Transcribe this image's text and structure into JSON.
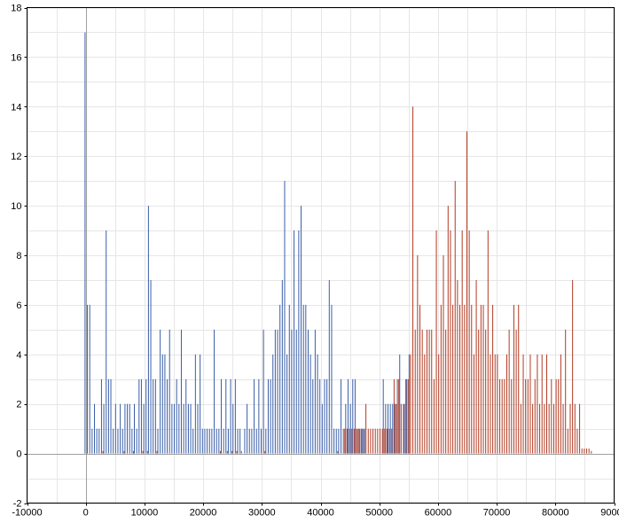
{
  "chart_data": {
    "type": "bar",
    "title": "",
    "xlabel": "",
    "ylabel": "",
    "xlim": [
      -10000,
      90000
    ],
    "ylim": [
      -2,
      18
    ],
    "grid": true,
    "x_ticks": [
      -10000,
      0,
      10000,
      20000,
      30000,
      40000,
      50000,
      60000,
      70000,
      80000,
      90000
    ],
    "y_ticks": [
      -2,
      0,
      2,
      4,
      6,
      8,
      10,
      12,
      14,
      16,
      18
    ],
    "bin_width": 400,
    "colors": {
      "blue": "#3a5ea8",
      "red": "#b23a22",
      "grid": "#e6e6e6",
      "axis": "#a0a0a0",
      "frame": "#000000"
    },
    "series": [
      {
        "color": "#3a5ea8",
        "points": [
          [
            0,
            17
          ],
          [
            400,
            6
          ],
          [
            800,
            6
          ],
          [
            1200,
            1
          ],
          [
            1600,
            2
          ],
          [
            2000,
            1
          ],
          [
            2400,
            1
          ],
          [
            2800,
            3
          ],
          [
            3200,
            2
          ],
          [
            3600,
            9
          ],
          [
            4000,
            3
          ],
          [
            4400,
            3
          ],
          [
            4800,
            1
          ],
          [
            5200,
            2
          ],
          [
            5600,
            1
          ],
          [
            6000,
            2
          ],
          [
            6400,
            1
          ],
          [
            6800,
            2
          ],
          [
            7200,
            2
          ],
          [
            7600,
            2
          ],
          [
            8000,
            1
          ],
          [
            8400,
            2
          ],
          [
            8800,
            1
          ],
          [
            9200,
            3
          ],
          [
            9600,
            3
          ],
          [
            10000,
            2
          ],
          [
            10400,
            3
          ],
          [
            10800,
            10
          ],
          [
            11200,
            7
          ],
          [
            11600,
            3
          ],
          [
            12000,
            3
          ],
          [
            12400,
            1
          ],
          [
            12800,
            5
          ],
          [
            13200,
            4
          ],
          [
            13600,
            4
          ],
          [
            14000,
            3
          ],
          [
            14400,
            5
          ],
          [
            14800,
            2
          ],
          [
            15200,
            2
          ],
          [
            15600,
            3
          ],
          [
            16000,
            2
          ],
          [
            16400,
            5
          ],
          [
            16800,
            2
          ],
          [
            17200,
            3
          ],
          [
            17600,
            2
          ],
          [
            18000,
            2
          ],
          [
            18400,
            1
          ],
          [
            18800,
            4
          ],
          [
            19200,
            2
          ],
          [
            19600,
            4
          ],
          [
            20000,
            1
          ],
          [
            20400,
            1
          ],
          [
            20800,
            1
          ],
          [
            21200,
            1
          ],
          [
            21600,
            1
          ],
          [
            22000,
            5
          ],
          [
            22400,
            1
          ],
          [
            22800,
            1
          ],
          [
            23200,
            3
          ],
          [
            23600,
            1
          ],
          [
            24000,
            3
          ],
          [
            24400,
            1
          ],
          [
            24800,
            3
          ],
          [
            25200,
            2
          ],
          [
            25600,
            3
          ],
          [
            26000,
            1
          ],
          [
            26400,
            1
          ],
          [
            27200,
            1
          ],
          [
            27600,
            2
          ],
          [
            28000,
            1
          ],
          [
            28400,
            1
          ],
          [
            28800,
            3
          ],
          [
            29200,
            1
          ],
          [
            29600,
            3
          ],
          [
            30000,
            1
          ],
          [
            30400,
            5
          ],
          [
            30800,
            1
          ],
          [
            31200,
            3
          ],
          [
            31600,
            3
          ],
          [
            32000,
            4
          ],
          [
            32400,
            5
          ],
          [
            32800,
            5
          ],
          [
            33200,
            6
          ],
          [
            33600,
            7
          ],
          [
            34000,
            11
          ],
          [
            34400,
            4
          ],
          [
            34800,
            6
          ],
          [
            35200,
            5
          ],
          [
            35600,
            9
          ],
          [
            36000,
            5
          ],
          [
            36400,
            9
          ],
          [
            36800,
            10
          ],
          [
            37200,
            6
          ],
          [
            37600,
            6
          ],
          [
            38000,
            5
          ],
          [
            38400,
            4
          ],
          [
            38800,
            3
          ],
          [
            39200,
            5
          ],
          [
            39600,
            4
          ],
          [
            40000,
            3
          ],
          [
            40400,
            2
          ],
          [
            40800,
            3
          ],
          [
            41200,
            3
          ],
          [
            41600,
            7
          ],
          [
            42000,
            6
          ],
          [
            42400,
            1
          ],
          [
            42800,
            1
          ],
          [
            43200,
            1
          ],
          [
            43600,
            3
          ],
          [
            44000,
            1
          ],
          [
            44400,
            2
          ],
          [
            44800,
            3
          ],
          [
            45200,
            2
          ],
          [
            45600,
            3
          ],
          [
            46000,
            3
          ],
          [
            46400,
            1
          ],
          [
            46800,
            1
          ],
          [
            47200,
            1
          ],
          [
            47600,
            1
          ],
          [
            50800,
            3
          ],
          [
            51200,
            2
          ],
          [
            51600,
            2
          ],
          [
            52000,
            2
          ],
          [
            52400,
            2
          ],
          [
            52800,
            2
          ],
          [
            53200,
            3
          ],
          [
            53600,
            4
          ],
          [
            54400,
            2
          ],
          [
            54800,
            3
          ],
          [
            55200,
            4
          ]
        ]
      },
      {
        "color": "#b23a22",
        "points": [
          [
            2800,
            0.1
          ],
          [
            6400,
            0.1
          ],
          [
            8000,
            0.1
          ],
          [
            9600,
            0.1
          ],
          [
            10400,
            0.1
          ],
          [
            12000,
            0.1
          ],
          [
            22800,
            0.1
          ],
          [
            24000,
            0.1
          ],
          [
            24800,
            0.1
          ],
          [
            25600,
            0.1
          ],
          [
            26400,
            0.1
          ],
          [
            30400,
            0.1
          ],
          [
            42800,
            0.1
          ],
          [
            44000,
            1
          ],
          [
            44400,
            1
          ],
          [
            44800,
            1
          ],
          [
            45200,
            1
          ],
          [
            45600,
            1
          ],
          [
            46000,
            1
          ],
          [
            46400,
            1
          ],
          [
            46800,
            1
          ],
          [
            47200,
            1
          ],
          [
            47600,
            2
          ],
          [
            48000,
            1
          ],
          [
            48400,
            1
          ],
          [
            48800,
            1
          ],
          [
            49200,
            1
          ],
          [
            49600,
            1
          ],
          [
            50000,
            1
          ],
          [
            50400,
            1
          ],
          [
            50800,
            1
          ],
          [
            51200,
            1
          ],
          [
            51600,
            1
          ],
          [
            52000,
            1
          ],
          [
            52400,
            3
          ],
          [
            52800,
            2
          ],
          [
            53200,
            3
          ],
          [
            53600,
            2
          ],
          [
            54000,
            2
          ],
          [
            54400,
            3
          ],
          [
            54800,
            3
          ],
          [
            55200,
            4
          ],
          [
            55600,
            14
          ],
          [
            56000,
            5
          ],
          [
            56400,
            8
          ],
          [
            56800,
            6
          ],
          [
            57200,
            5
          ],
          [
            57600,
            4
          ],
          [
            58000,
            5
          ],
          [
            58400,
            5
          ],
          [
            58800,
            5
          ],
          [
            59200,
            3
          ],
          [
            59600,
            9
          ],
          [
            60000,
            4
          ],
          [
            60400,
            6
          ],
          [
            60800,
            8
          ],
          [
            61200,
            5
          ],
          [
            61600,
            10
          ],
          [
            62000,
            9
          ],
          [
            62400,
            6
          ],
          [
            62800,
            11
          ],
          [
            63200,
            7
          ],
          [
            63600,
            6
          ],
          [
            64000,
            9
          ],
          [
            64400,
            6
          ],
          [
            64800,
            13
          ],
          [
            65200,
            9
          ],
          [
            65600,
            6
          ],
          [
            66000,
            4
          ],
          [
            66400,
            7
          ],
          [
            66800,
            5
          ],
          [
            67200,
            6
          ],
          [
            67600,
            6
          ],
          [
            68000,
            5
          ],
          [
            68400,
            9
          ],
          [
            68800,
            4
          ],
          [
            69200,
            6
          ],
          [
            69600,
            4
          ],
          [
            70000,
            4
          ],
          [
            70400,
            3
          ],
          [
            70800,
            3
          ],
          [
            71200,
            3
          ],
          [
            71600,
            4
          ],
          [
            72000,
            5
          ],
          [
            72400,
            3
          ],
          [
            72800,
            6
          ],
          [
            73200,
            5
          ],
          [
            73600,
            6
          ],
          [
            74000,
            2
          ],
          [
            74400,
            4
          ],
          [
            74800,
            3
          ],
          [
            75200,
            3
          ],
          [
            75600,
            4
          ],
          [
            76000,
            2
          ],
          [
            76400,
            3
          ],
          [
            76800,
            4
          ],
          [
            77200,
            2
          ],
          [
            77600,
            4
          ],
          [
            78000,
            2
          ],
          [
            78400,
            4
          ],
          [
            78800,
            2
          ],
          [
            79200,
            3
          ],
          [
            79600,
            2
          ],
          [
            80000,
            3
          ],
          [
            80400,
            3
          ],
          [
            80800,
            4
          ],
          [
            81200,
            2
          ],
          [
            81600,
            5
          ],
          [
            82000,
            1
          ],
          [
            82400,
            2
          ],
          [
            82800,
            7
          ],
          [
            83200,
            2
          ],
          [
            83600,
            1
          ],
          [
            84000,
            2
          ],
          [
            84400,
            0.2
          ],
          [
            84800,
            0.2
          ],
          [
            85200,
            0.2
          ],
          [
            85600,
            0.2
          ],
          [
            86000,
            0.1
          ]
        ]
      }
    ]
  }
}
